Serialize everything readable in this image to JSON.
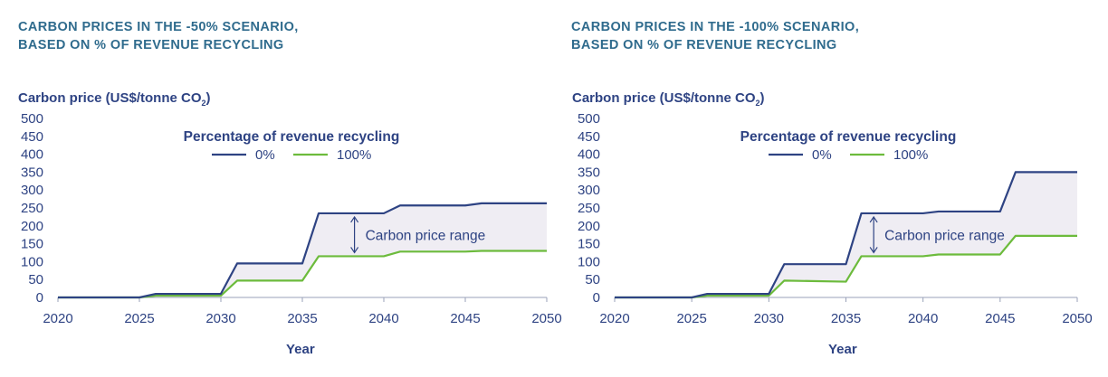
{
  "colors": {
    "series_0": "#2e4383",
    "series_100": "#6cbb3c",
    "title": "#2f6b8d",
    "range_fill": "#efedf3",
    "text": "#2e4383",
    "axis": "#9aa2b8"
  },
  "legend_title": "Percentage of revenue recycling",
  "range_annotation": "Carbon price range",
  "chart_data": [
    {
      "type": "line",
      "title": "CARBON PRICES IN THE -50% SCENARIO,\nBASED ON % OF REVENUE RECYCLING",
      "ylabel": "Carbon price (US$/tonne CO",
      "ylabel_sub": "2",
      "ylabel_end": ")",
      "xlabel": "Year",
      "xlim": [
        2020,
        2050
      ],
      "ylim": [
        0,
        500
      ],
      "x_ticks": [
        2020,
        2025,
        2030,
        2035,
        2040,
        2045,
        2050
      ],
      "y_ticks": [
        0,
        50,
        100,
        150,
        200,
        250,
        300,
        350,
        400,
        450,
        500
      ],
      "range_arrow_x": 2038.2,
      "series": [
        {
          "name": "0%",
          "points": [
            [
              2020,
              0
            ],
            [
              2025,
              0
            ],
            [
              2026,
              10
            ],
            [
              2030,
              10
            ],
            [
              2031,
              95
            ],
            [
              2035,
              95
            ],
            [
              2036,
              235
            ],
            [
              2040,
              235
            ],
            [
              2041,
              257
            ],
            [
              2045,
              257
            ],
            [
              2046,
              263
            ],
            [
              2050,
              263
            ]
          ]
        },
        {
          "name": "100%",
          "points": [
            [
              2020,
              0
            ],
            [
              2025,
              0
            ],
            [
              2026,
              5
            ],
            [
              2030,
              5
            ],
            [
              2031,
              47
            ],
            [
              2035,
              47
            ],
            [
              2036,
              115
            ],
            [
              2040,
              115
            ],
            [
              2041,
              128
            ],
            [
              2045,
              128
            ],
            [
              2046,
              130
            ],
            [
              2050,
              130
            ]
          ]
        }
      ]
    },
    {
      "type": "line",
      "title": "CARBON PRICES IN THE -100% SCENARIO,\nBASED ON % OF REVENUE RECYCLING",
      "ylabel": "Carbon price (US$/tonne CO",
      "ylabel_sub": "2",
      "ylabel_end": ")",
      "xlabel": "Year",
      "xlim": [
        2020,
        2050
      ],
      "ylim": [
        0,
        500
      ],
      "x_ticks": [
        2020,
        2025,
        2030,
        2035,
        2040,
        2045,
        2050
      ],
      "y_ticks": [
        0,
        50,
        100,
        150,
        200,
        250,
        300,
        350,
        400,
        450,
        500
      ],
      "range_arrow_x": 2036.8,
      "series": [
        {
          "name": "0%",
          "points": [
            [
              2020,
              0
            ],
            [
              2025,
              0
            ],
            [
              2026,
              10
            ],
            [
              2030,
              10
            ],
            [
              2031,
              93
            ],
            [
              2035,
              93
            ],
            [
              2036,
              235
            ],
            [
              2040,
              235
            ],
            [
              2041,
              240
            ],
            [
              2045,
              240
            ],
            [
              2046,
              350
            ],
            [
              2050,
              350
            ]
          ]
        },
        {
          "name": "100%",
          "points": [
            [
              2020,
              0
            ],
            [
              2025,
              0
            ],
            [
              2026,
              5
            ],
            [
              2030,
              5
            ],
            [
              2031,
              47
            ],
            [
              2035,
              44
            ],
            [
              2036,
              115
            ],
            [
              2040,
              115
            ],
            [
              2041,
              120
            ],
            [
              2045,
              120
            ],
            [
              2046,
              172
            ],
            [
              2050,
              172
            ]
          ]
        }
      ]
    }
  ]
}
